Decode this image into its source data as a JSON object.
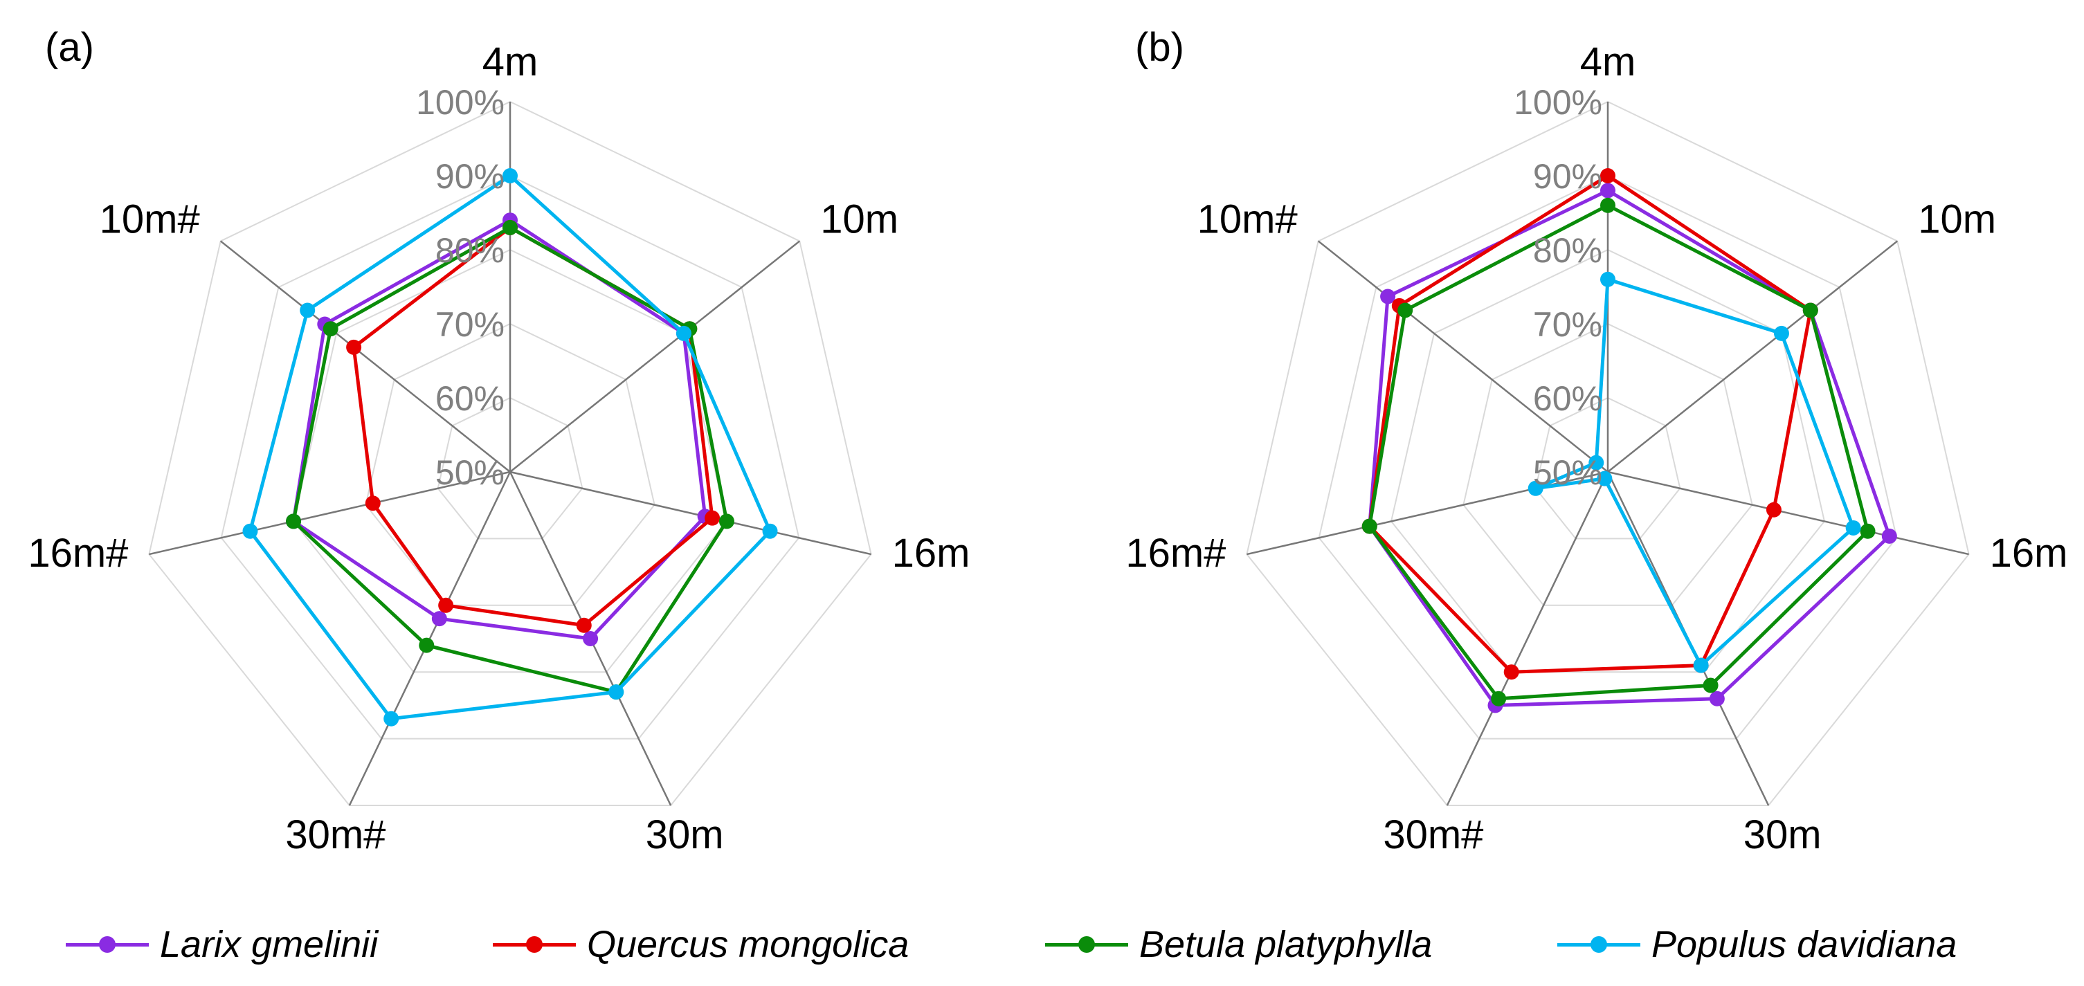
{
  "chart_data": [
    {
      "type": "radar",
      "panel_label": "(a)",
      "axes": [
        "4m",
        "10m",
        "16m",
        "30m",
        "30m#",
        "16m#",
        "10m#"
      ],
      "rlim": [
        50,
        100
      ],
      "tick_labels": [
        "50%",
        "60%",
        "70%",
        "80%",
        "90%",
        "100%"
      ],
      "series": [
        {
          "name": "Larix gmelinii",
          "values": [
            84,
            80,
            77,
            75,
            72,
            80,
            82
          ]
        },
        {
          "name": "Quercus mongolica",
          "values": [
            83,
            81,
            78,
            73,
            70,
            69,
            77
          ]
        },
        {
          "name": "Betula platyphylla",
          "values": [
            83,
            81,
            80,
            83,
            76,
            80,
            81
          ]
        },
        {
          "name": "Populus davidiana",
          "values": [
            90,
            80,
            86,
            83,
            87,
            86,
            85
          ]
        }
      ]
    },
    {
      "type": "radar",
      "panel_label": "(b)",
      "axes": [
        "4m",
        "10m",
        "16m",
        "30m",
        "30m#",
        "16m#",
        "10m#"
      ],
      "rlim": [
        50,
        100
      ],
      "tick_labels": [
        "50%",
        "60%",
        "70%",
        "80%",
        "90%",
        "100%"
      ],
      "series": [
        {
          "name": "Larix gmelinii",
          "values": [
            88,
            85,
            89,
            84,
            85,
            83,
            88
          ]
        },
        {
          "name": "Quercus mongolica",
          "values": [
            90,
            85,
            73,
            79,
            80,
            83,
            86
          ]
        },
        {
          "name": "Betula platyphylla",
          "values": [
            86,
            85,
            86,
            82,
            84,
            83,
            85
          ]
        },
        {
          "name": "Populus davidiana",
          "values": [
            76,
            80,
            84,
            79,
            51,
            60,
            52
          ]
        }
      ]
    }
  ],
  "legend": [
    {
      "name": "Larix gmelinii",
      "color": "#8a2be2"
    },
    {
      "name": "Quercus mongolica",
      "color": "#e60000"
    },
    {
      "name": "Betula platyphylla",
      "color": "#0a8c0a"
    },
    {
      "name": "Populus davidiana",
      "color": "#00b4f0"
    }
  ],
  "colors": {
    "grid": "#d9d9d9",
    "spoke": "#777777",
    "tick_text": "#808080"
  }
}
